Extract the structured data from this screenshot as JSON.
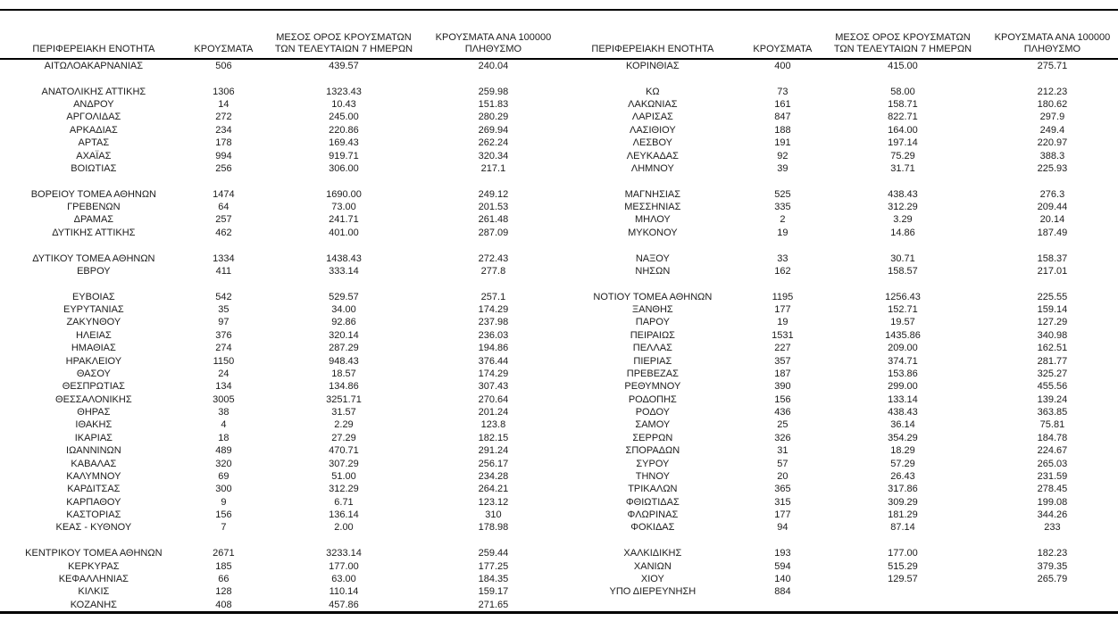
{
  "colors": {
    "background": "#ffffff",
    "text": "#1c1c1c",
    "rule": "#000000"
  },
  "columns": [
    "ΠΕΡΙΦΕΡΕΙΑΚΗ ΕΝΟΤΗΤΑ",
    "ΚΡΟΥΣΜΑΤΑ",
    "ΜΕΣΟΣ ΟΡΟΣ ΚΡΟΥΣΜΑΤΩΝ\nΤΩΝ ΤΕΛΕΥΤΑΙΩΝ 7 ΗΜΕΡΩΝ",
    "ΚΡΟΥΣΜΑΤΑ ΑΝΑ 100000\nΠΛΗΘΥΣΜΟ"
  ],
  "left_table": {
    "rows": [
      [
        "ΑΙΤΩΛΟΑΚΑΡΝΑΝΙΑΣ",
        "506",
        "439.57",
        "240.04"
      ],
      null,
      [
        "ΑΝΑΤΟΛΙΚΗΣ ΑΤΤΙΚΗΣ",
        "1306",
        "1323.43",
        "259.98"
      ],
      [
        "ΑΝΔΡΟΥ",
        "14",
        "10.43",
        "151.83"
      ],
      [
        "ΑΡΓΟΛΙΔΑΣ",
        "272",
        "245.00",
        "280.29"
      ],
      [
        "ΑΡΚΑΔΙΑΣ",
        "234",
        "220.86",
        "269.94"
      ],
      [
        "ΑΡΤΑΣ",
        "178",
        "169.43",
        "262.24"
      ],
      [
        "ΑΧΑΪΑΣ",
        "994",
        "919.71",
        "320.34"
      ],
      [
        "ΒΟΙΩΤΙΑΣ",
        "256",
        "306.00",
        "217.1"
      ],
      null,
      [
        "ΒΟΡΕΙΟΥ ΤΟΜΕΑ ΑΘΗΝΩΝ",
        "1474",
        "1690.00",
        "249.12"
      ],
      [
        "ΓΡΕΒΕΝΩΝ",
        "64",
        "73.00",
        "201.53"
      ],
      [
        "ΔΡΑΜΑΣ",
        "257",
        "241.71",
        "261.48"
      ],
      [
        "ΔΥΤΙΚΗΣ ΑΤΤΙΚΗΣ",
        "462",
        "401.00",
        "287.09"
      ],
      null,
      [
        "ΔΥΤΙΚΟΥ ΤΟΜΕΑ ΑΘΗΝΩΝ",
        "1334",
        "1438.43",
        "272.43"
      ],
      [
        "ΕΒΡΟΥ",
        "411",
        "333.14",
        "277.8"
      ],
      null,
      [
        "ΕΥΒΟΙΑΣ",
        "542",
        "529.57",
        "257.1"
      ],
      [
        "ΕΥΡΥΤΑΝΙΑΣ",
        "35",
        "34.00",
        "174.29"
      ],
      [
        "ΖΑΚΥΝΘΟΥ",
        "97",
        "92.86",
        "237.98"
      ],
      [
        "ΗΛΕΙΑΣ",
        "376",
        "320.14",
        "236.03"
      ],
      [
        "ΗΜΑΘΙΑΣ",
        "274",
        "287.29",
        "194.86"
      ],
      [
        "ΗΡΑΚΛΕΙΟΥ",
        "1150",
        "948.43",
        "376.44"
      ],
      [
        "ΘΑΣΟΥ",
        "24",
        "18.57",
        "174.29"
      ],
      [
        "ΘΕΣΠΡΩΤΙΑΣ",
        "134",
        "134.86",
        "307.43"
      ],
      [
        "ΘΕΣΣΑΛΟΝΙΚΗΣ",
        "3005",
        "3251.71",
        "270.64"
      ],
      [
        "ΘΗΡΑΣ",
        "38",
        "31.57",
        "201.24"
      ],
      [
        "ΙΘΑΚΗΣ",
        "4",
        "2.29",
        "123.8"
      ],
      [
        "ΙΚΑΡΙΑΣ",
        "18",
        "27.29",
        "182.15"
      ],
      [
        "ΙΩΑΝΝΙΝΩΝ",
        "489",
        "470.71",
        "291.24"
      ],
      [
        "ΚΑΒΑΛΑΣ",
        "320",
        "307.29",
        "256.17"
      ],
      [
        "ΚΑΛΥΜΝΟΥ",
        "69",
        "51.00",
        "234.28"
      ],
      [
        "ΚΑΡΔΙΤΣΑΣ",
        "300",
        "312.29",
        "264.21"
      ],
      [
        "ΚΑΡΠΑΘΟΥ",
        "9",
        "6.71",
        "123.12"
      ],
      [
        "ΚΑΣΤΟΡΙΑΣ",
        "156",
        "136.14",
        "310"
      ],
      [
        "ΚΕΑΣ - ΚΥΘΝΟΥ",
        "7",
        "2.00",
        "178.98"
      ],
      null,
      [
        "ΚΕΝΤΡΙΚΟΥ ΤΟΜΕΑ ΑΘΗΝΩΝ",
        "2671",
        "3233.14",
        "259.44"
      ],
      [
        "ΚΕΡΚΥΡΑΣ",
        "185",
        "177.00",
        "177.25"
      ],
      [
        "ΚΕΦΑΛΛΗΝΙΑΣ",
        "66",
        "63.00",
        "184.35"
      ],
      [
        "ΚΙΛΚΙΣ",
        "128",
        "110.14",
        "159.17"
      ],
      [
        "ΚΟΖΑΝΗΣ",
        "408",
        "457.86",
        "271.65"
      ]
    ]
  },
  "right_table": {
    "rows": [
      [
        "ΚΟΡΙΝΘΙΑΣ",
        "400",
        "415.00",
        "275.71"
      ],
      null,
      [
        "ΚΩ",
        "73",
        "58.00",
        "212.23"
      ],
      [
        "ΛΑΚΩΝΙΑΣ",
        "161",
        "158.71",
        "180.62"
      ],
      [
        "ΛΑΡΙΣΑΣ",
        "847",
        "822.71",
        "297.9"
      ],
      [
        "ΛΑΣΙΘΙΟΥ",
        "188",
        "164.00",
        "249.4"
      ],
      [
        "ΛΕΣΒΟΥ",
        "191",
        "197.14",
        "220.97"
      ],
      [
        "ΛΕΥΚΑΔΑΣ",
        "92",
        "75.29",
        "388.3"
      ],
      [
        "ΛΗΜΝΟΥ",
        "39",
        "31.71",
        "225.93"
      ],
      null,
      [
        "ΜΑΓΝΗΣΙΑΣ",
        "525",
        "438.43",
        "276.3"
      ],
      [
        "ΜΕΣΣΗΝΙΑΣ",
        "335",
        "312.29",
        "209.44"
      ],
      [
        "ΜΗΛΟΥ",
        "2",
        "3.29",
        "20.14"
      ],
      [
        "ΜΥΚΟΝΟΥ",
        "19",
        "14.86",
        "187.49"
      ],
      null,
      [
        "ΝΑΞΟΥ",
        "33",
        "30.71",
        "158.37"
      ],
      [
        "ΝΗΣΩΝ",
        "162",
        "158.57",
        "217.01"
      ],
      null,
      [
        "ΝΟΤΙΟΥ ΤΟΜΕΑ ΑΘΗΝΩΝ",
        "1195",
        "1256.43",
        "225.55"
      ],
      [
        "ΞΑΝΘΗΣ",
        "177",
        "152.71",
        "159.14"
      ],
      [
        "ΠΑΡΟΥ",
        "19",
        "19.57",
        "127.29"
      ],
      [
        "ΠΕΙΡΑΙΩΣ",
        "1531",
        "1435.86",
        "340.98"
      ],
      [
        "ΠΕΛΛΑΣ",
        "227",
        "209.00",
        "162.51"
      ],
      [
        "ΠΙΕΡΙΑΣ",
        "357",
        "374.71",
        "281.77"
      ],
      [
        "ΠΡΕΒΕΖΑΣ",
        "187",
        "153.86",
        "325.27"
      ],
      [
        "ΡΕΘΥΜΝΟΥ",
        "390",
        "299.00",
        "455.56"
      ],
      [
        "ΡΟΔΟΠΗΣ",
        "156",
        "133.14",
        "139.24"
      ],
      [
        "ΡΟΔΟΥ",
        "436",
        "438.43",
        "363.85"
      ],
      [
        "ΣΑΜΟΥ",
        "25",
        "36.14",
        "75.81"
      ],
      [
        "ΣΕΡΡΩΝ",
        "326",
        "354.29",
        "184.78"
      ],
      [
        "ΣΠΟΡΑΔΩΝ",
        "31",
        "18.29",
        "224.67"
      ],
      [
        "ΣΥΡΟΥ",
        "57",
        "57.29",
        "265.03"
      ],
      [
        "ΤΗΝΟΥ",
        "20",
        "26.43",
        "231.59"
      ],
      [
        "ΤΡΙΚΑΛΩΝ",
        "365",
        "317.86",
        "278.45"
      ],
      [
        "ΦΘΙΩΤΙΔΑΣ",
        "315",
        "309.29",
        "199.08"
      ],
      [
        "ΦΛΩΡΙΝΑΣ",
        "177",
        "181.29",
        "344.26"
      ],
      [
        "ΦΟΚΙΔΑΣ",
        "94",
        "87.14",
        "233"
      ],
      null,
      [
        "ΧΑΛΚΙΔΙΚΗΣ",
        "193",
        "177.00",
        "182.23"
      ],
      [
        "ΧΑΝΙΩΝ",
        "594",
        "515.29",
        "379.35"
      ],
      [
        "ΧΙΟΥ",
        "140",
        "129.57",
        "265.79"
      ],
      [
        "ΥΠΟ ΔΙΕΡΕΥΝΗΣΗ",
        "884",
        "",
        ""
      ],
      null
    ]
  }
}
